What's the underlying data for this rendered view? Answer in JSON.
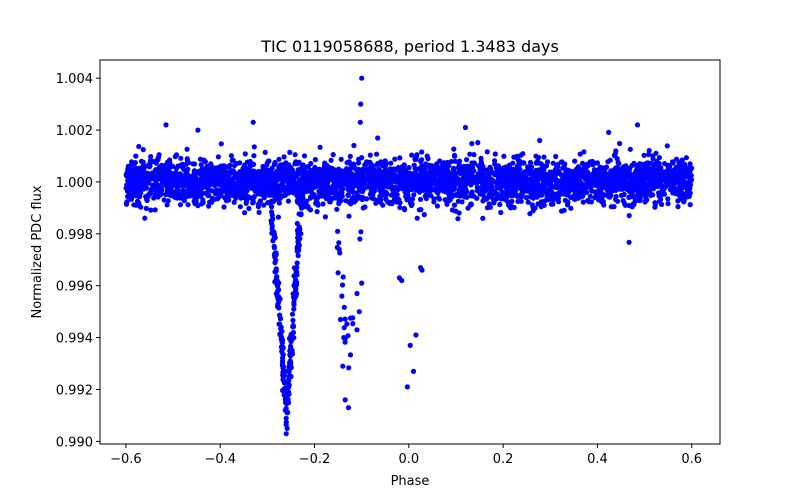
{
  "chart_data": {
    "type": "scatter",
    "title": "TIC 0119058688, period 1.3483 days",
    "xlabel": "Phase",
    "ylabel": "Normalized PDC flux",
    "xlim": [
      -0.655,
      0.66
    ],
    "ylim": [
      0.9899,
      1.0047
    ],
    "x_ticks": [
      -0.6,
      -0.4,
      -0.2,
      0.0,
      0.2,
      0.4,
      0.6
    ],
    "x_tick_labels": [
      "−0.6",
      "−0.4",
      "−0.2",
      "0.0",
      "0.2",
      "0.4",
      "0.6"
    ],
    "y_ticks": [
      0.99,
      0.992,
      0.994,
      0.996,
      0.998,
      1.0,
      1.002,
      1.004
    ],
    "y_tick_labels": [
      "0.990",
      "0.992",
      "0.994",
      "0.996",
      "0.998",
      "1.000",
      "1.002",
      "1.004"
    ],
    "grid": false,
    "marker_color": "#0000ff",
    "series": [
      {
        "name": "PDC flux",
        "description": "dense baseline band near 1.000 spanning phase -0.6 to 0.6; primary transit near phase -0.26, secondary dip near -0.13, scattered points near 0.0",
        "outlier_points": [
          {
            "x": -0.1,
            "y": 1.004
          },
          {
            "x": -0.102,
            "y": 1.003
          },
          {
            "x": -0.103,
            "y": 1.0023
          },
          {
            "x": -0.33,
            "y": 1.0023
          },
          {
            "x": -0.515,
            "y": 1.0022
          },
          {
            "x": 0.485,
            "y": 1.0022
          },
          {
            "x": 0.12,
            "y": 1.0021
          },
          {
            "x": -0.258,
            "y": 0.9905
          },
          {
            "x": -0.262,
            "y": 0.9912
          },
          {
            "x": -0.255,
            "y": 0.9915
          },
          {
            "x": -0.265,
            "y": 0.992
          },
          {
            "x": -0.25,
            "y": 0.9925
          },
          {
            "x": -0.268,
            "y": 0.993
          },
          {
            "x": -0.248,
            "y": 0.9935
          },
          {
            "x": -0.135,
            "y": 0.9916
          },
          {
            "x": -0.128,
            "y": 0.9913
          },
          {
            "x": -0.14,
            "y": 0.9929
          },
          {
            "x": -0.11,
            "y": 0.9943
          },
          {
            "x": -0.105,
            "y": 0.995
          },
          {
            "x": -0.145,
            "y": 0.9947
          },
          {
            "x": -0.138,
            "y": 0.994
          },
          {
            "x": -0.15,
            "y": 0.9965
          },
          {
            "x": -0.11,
            "y": 0.9957
          },
          {
            "x": -0.1,
            "y": 0.9961
          },
          {
            "x": -0.003,
            "y": 0.9921
          },
          {
            "x": 0.003,
            "y": 0.9937
          },
          {
            "x": 0.01,
            "y": 0.9927
          },
          {
            "x": 0.015,
            "y": 0.9941
          },
          {
            "x": -0.02,
            "y": 0.9963
          },
          {
            "x": -0.015,
            "y": 0.9962
          },
          {
            "x": 0.025,
            "y": 0.9967
          },
          {
            "x": 0.028,
            "y": 0.9966
          }
        ]
      }
    ]
  }
}
